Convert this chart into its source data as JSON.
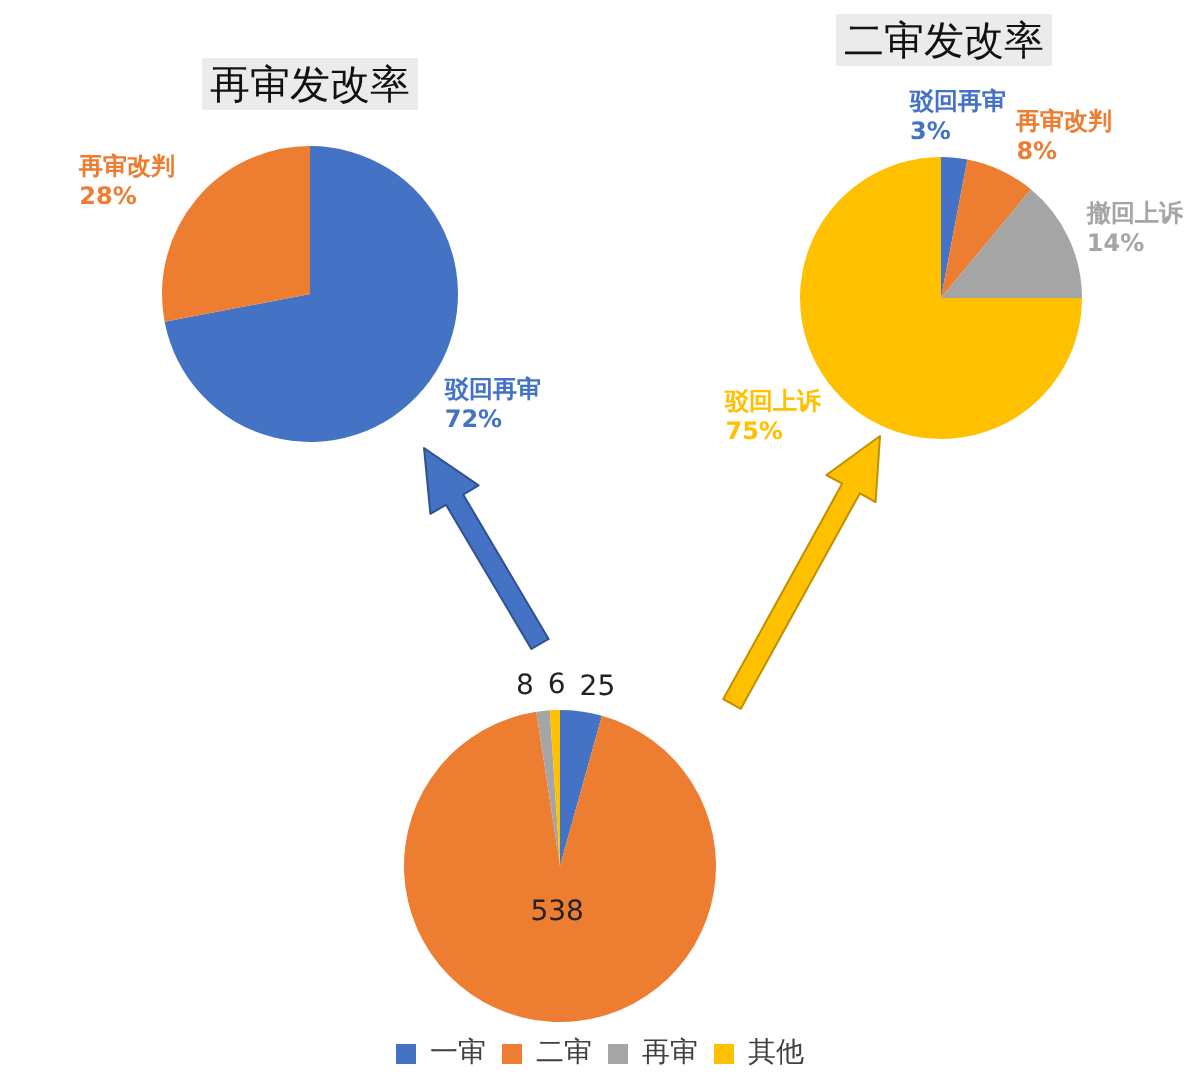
{
  "chart_data": [
    {
      "type": "pie",
      "title": "再审发改率",
      "categories": [
        "驳回再审",
        "再审改判"
      ],
      "values": [
        72,
        28
      ],
      "colors": [
        "#4472c4",
        "#ed7d31"
      ],
      "value_labels": [
        "72%",
        "28%"
      ],
      "legend": false
    },
    {
      "type": "pie",
      "title": "二审发改率",
      "categories": [
        "驳回再审",
        "再审改判",
        "撤回上诉",
        "驳回上诉"
      ],
      "values": [
        3,
        8,
        14,
        75
      ],
      "colors": [
        "#4472c4",
        "#ed7d31",
        "#a5a5a5",
        "#ffc000"
      ],
      "value_labels": [
        "3%",
        "8%",
        "14%",
        "75%"
      ],
      "legend": false
    },
    {
      "type": "pie",
      "categories": [
        "一审",
        "二审",
        "再审",
        "其他"
      ],
      "values": [
        25,
        538,
        8,
        6
      ],
      "colors": [
        "#4472c4",
        "#ed7d31",
        "#a5a5a5",
        "#ffc000"
      ],
      "data_labels": true,
      "legend": "bottom"
    }
  ]
}
